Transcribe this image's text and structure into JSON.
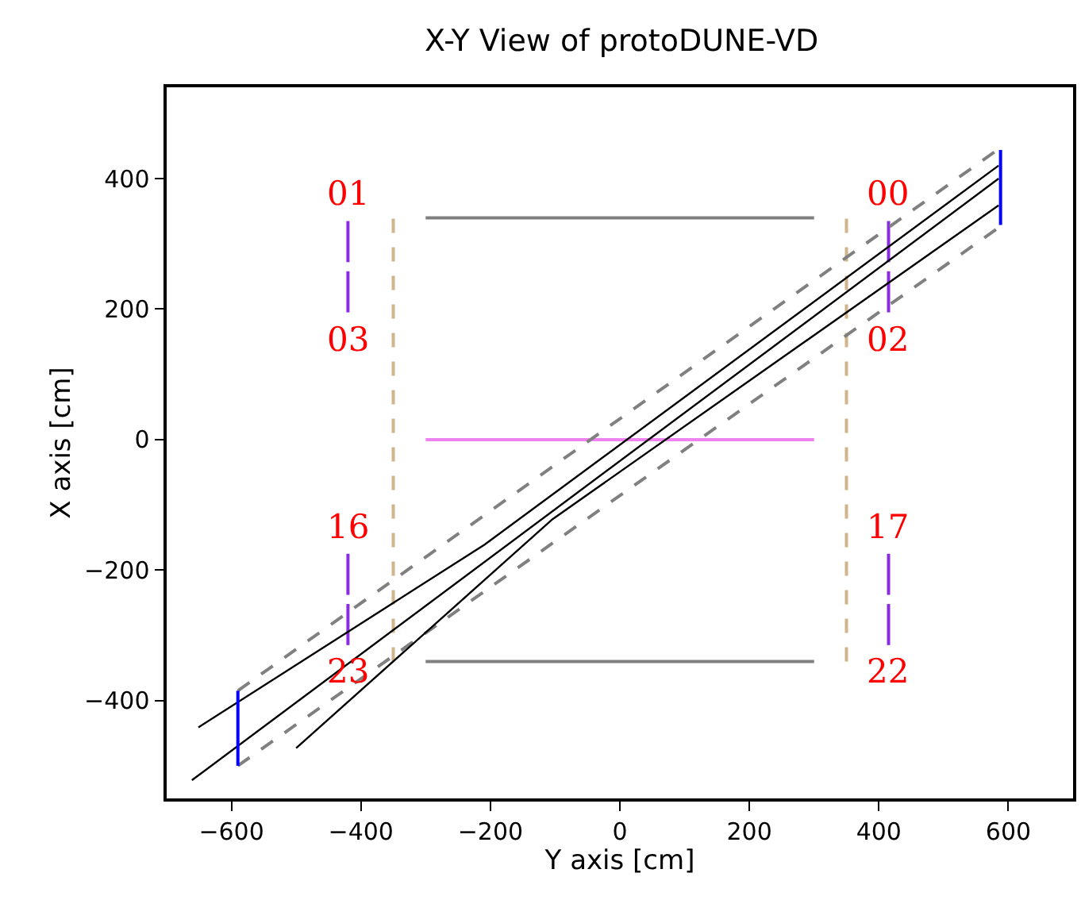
{
  "chart_data": {
    "type": "line",
    "title": "X-Y View of protoDUNE-VD",
    "xlabel": "Y axis [cm]",
    "ylabel": "X axis [cm]",
    "xlim": [
      -700,
      700
    ],
    "ylim": [
      -550,
      540
    ],
    "xticks": [
      -600,
      -400,
      -200,
      0,
      200,
      400,
      600
    ],
    "yticks": [
      -400,
      -200,
      0,
      200,
      400
    ],
    "marker": "none",
    "series": [
      {
        "x": [
          -300,
          300
        ],
        "values": [
          340,
          340
        ],
        "color": "#808080",
        "line_style": "solid"
      },
      {
        "x": [
          -300,
          300
        ],
        "values": [
          -340,
          -340
        ],
        "color": "#808080",
        "line_style": "solid"
      },
      {
        "x": [
          -300,
          300
        ],
        "values": [
          0,
          0
        ],
        "color": "#ee82ee",
        "line_style": "solid"
      },
      {
        "x": [
          -350,
          -350
        ],
        "values": [
          -340,
          340
        ],
        "color": "#d2b48c",
        "line_style": "dashed"
      },
      {
        "x": [
          350,
          350
        ],
        "values": [
          -340,
          340
        ],
        "color": "#d2b48c",
        "line_style": "dashed"
      },
      {
        "name": "01",
        "x": [
          -420,
          -420
        ],
        "values": [
          272,
          335
        ],
        "color": "#8a2be2",
        "line_style": "solid"
      },
      {
        "name": "03",
        "x": [
          -420,
          -420
        ],
        "values": [
          258,
          195
        ],
        "color": "#8a2be2",
        "line_style": "solid"
      },
      {
        "name": "00",
        "x": [
          415,
          415
        ],
        "values": [
          272,
          335
        ],
        "color": "#8a2be2",
        "line_style": "solid"
      },
      {
        "name": "02",
        "x": [
          415,
          415
        ],
        "values": [
          258,
          195
        ],
        "color": "#8a2be2",
        "line_style": "solid"
      },
      {
        "name": "16",
        "x": [
          -420,
          -420
        ],
        "values": [
          -238,
          -175
        ],
        "color": "#8a2be2",
        "line_style": "solid"
      },
      {
        "name": "23",
        "x": [
          -420,
          -420
        ],
        "values": [
          -252,
          -315
        ],
        "color": "#8a2be2",
        "line_style": "solid"
      },
      {
        "name": "17",
        "x": [
          415,
          415
        ],
        "values": [
          -238,
          -175
        ],
        "color": "#8a2be2",
        "line_style": "solid"
      },
      {
        "name": "22",
        "x": [
          415,
          415
        ],
        "values": [
          -252,
          -315
        ],
        "color": "#8a2be2",
        "line_style": "solid"
      },
      {
        "x": [
          -590,
          583
        ],
        "values": [
          -385,
          444
        ],
        "color": "#808080",
        "line_style": "dashed"
      },
      {
        "x": [
          -590,
          588
        ],
        "values": [
          -500,
          327
        ],
        "color": "#808080",
        "line_style": "dashed"
      },
      {
        "x": [
          -651,
          -209,
          585
        ],
        "values": [
          -441,
          -161,
          420
        ],
        "color": "#000000",
        "line_style": "solid"
      },
      {
        "x": [
          -661,
          585
        ],
        "values": [
          -522,
          400
        ],
        "color": "#000000",
        "line_style": "solid"
      },
      {
        "x": [
          -500,
          -104,
          585
        ],
        "values": [
          -473,
          -122,
          359
        ],
        "color": "#000000",
        "line_style": "solid"
      },
      {
        "x": [
          588,
          588
        ],
        "values": [
          329,
          444
        ],
        "color": "#0000ff",
        "line_style": "solid"
      },
      {
        "x": [
          -590,
          -590
        ],
        "values": [
          -500,
          -385
        ],
        "color": "#0000ff",
        "line_style": "solid"
      }
    ]
  }
}
